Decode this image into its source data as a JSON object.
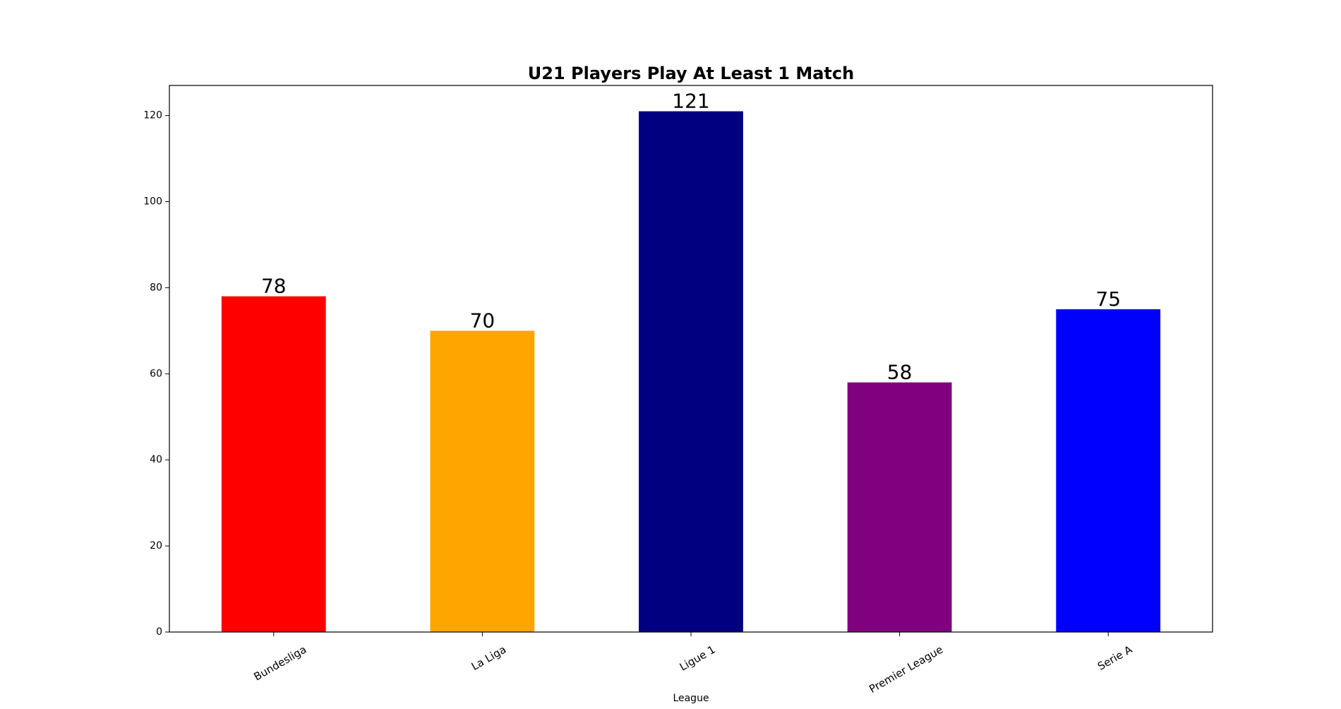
{
  "chart_data": {
    "type": "bar",
    "title": "U21 Players Play At Least 1 Match",
    "xlabel": "League",
    "ylabel": "",
    "categories": [
      "Bundesliga",
      "La Liga",
      "Ligue 1",
      "Premier League",
      "Serie A"
    ],
    "values": [
      78,
      70,
      121,
      58,
      75
    ],
    "colors": [
      "#ff0000",
      "#ffa500",
      "#000080",
      "#800080",
      "#0000ff"
    ],
    "ylim": [
      0,
      127
    ],
    "yticks": [
      0,
      20,
      40,
      60,
      80,
      100,
      120
    ],
    "grid": false,
    "legend": "none",
    "data_labels": true
  }
}
